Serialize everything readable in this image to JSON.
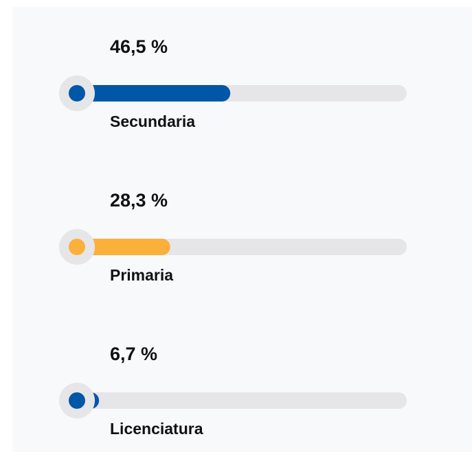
{
  "chart_data": {
    "type": "bar",
    "orientation": "horizontal",
    "categories": [
      "Secundaria",
      "Primaria",
      "Licenciatura"
    ],
    "values": [
      46.5,
      28.3,
      6.7
    ],
    "value_labels": [
      "46,5 %",
      "28,3 %",
      "6,7 %"
    ],
    "colors": [
      "#0057a8",
      "#fbb03b",
      "#0057a8"
    ],
    "xlim": [
      0,
      100
    ]
  }
}
